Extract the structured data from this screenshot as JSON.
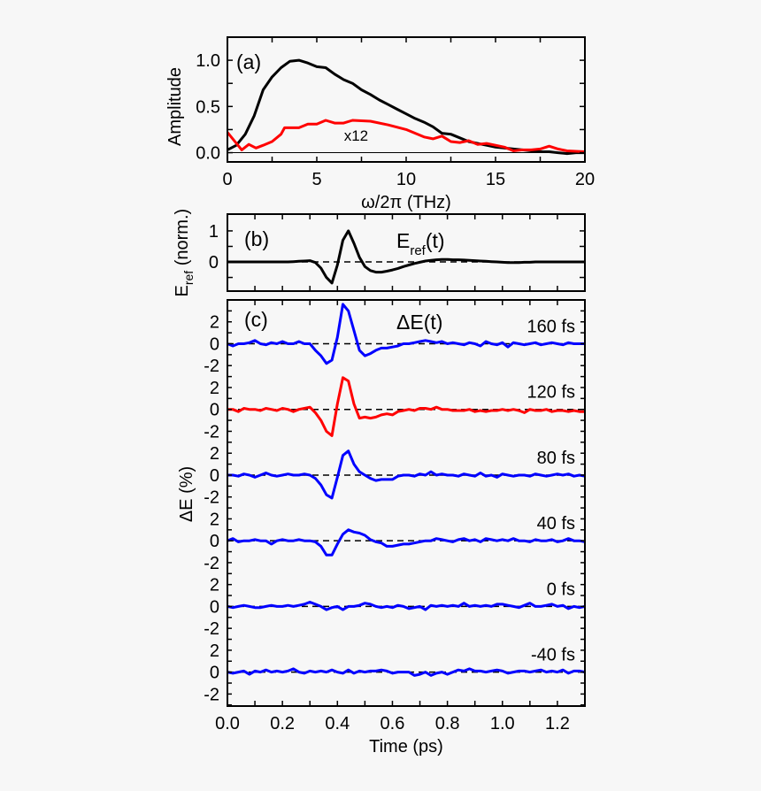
{
  "chart_data": [
    {
      "type": "line",
      "panel_label": "(a)",
      "xlabel": "ω/2π (THz)",
      "ylabel": "Amplitude",
      "xlim": [
        0,
        20
      ],
      "ylim": [
        -0.1,
        1.25
      ],
      "xticks": [
        0,
        5,
        10,
        15,
        20
      ],
      "xtick_labels": [
        "0",
        "5",
        "10",
        "15",
        "20"
      ],
      "yticks": [
        0.0,
        0.5,
        1.0
      ],
      "ytick_labels": [
        "0.0",
        "0.5",
        "1.0"
      ],
      "annotation": "x12",
      "grid": false,
      "series": [
        {
          "color": "#000000",
          "x": [
            0,
            0.5,
            1,
            1.5,
            2,
            2.5,
            3,
            3.5,
            4,
            4.5,
            5,
            5.5,
            6,
            6.5,
            7,
            7.5,
            8,
            8.5,
            9,
            9.5,
            10,
            10.5,
            11,
            11.5,
            12,
            12.5,
            13,
            13.5,
            14,
            14.5,
            15,
            15.5,
            16,
            16.5,
            17,
            17.5,
            18,
            18.5,
            19,
            19.5,
            20
          ],
          "y": [
            0.03,
            0.08,
            0.2,
            0.4,
            0.68,
            0.82,
            0.92,
            0.99,
            1.0,
            0.97,
            0.93,
            0.92,
            0.85,
            0.79,
            0.75,
            0.68,
            0.63,
            0.57,
            0.52,
            0.47,
            0.42,
            0.37,
            0.33,
            0.28,
            0.21,
            0.2,
            0.16,
            0.12,
            0.1,
            0.08,
            0.06,
            0.05,
            0.04,
            0.03,
            0.02,
            0.01,
            0.01,
            0.0,
            -0.01,
            0.0,
            0.0
          ]
        },
        {
          "color": "#ff0000",
          "x": [
            0,
            0.8,
            1.2,
            1.6,
            2,
            2.5,
            3,
            3.2,
            4,
            4.5,
            5,
            5.5,
            6,
            6.5,
            7,
            8,
            9,
            10,
            11,
            11.5,
            12,
            12.5,
            13,
            13.5,
            14,
            14.5,
            15,
            15.5,
            16,
            16.5,
            17,
            17.5,
            18,
            18.5,
            19,
            20
          ],
          "y": [
            0.22,
            0.03,
            0.09,
            0.05,
            0.08,
            0.12,
            0.2,
            0.27,
            0.27,
            0.31,
            0.31,
            0.35,
            0.32,
            0.32,
            0.35,
            0.34,
            0.3,
            0.25,
            0.17,
            0.15,
            0.18,
            0.12,
            0.11,
            0.13,
            0.09,
            0.1,
            0.08,
            0.06,
            0.02,
            0.03,
            0.03,
            0.04,
            0.07,
            0.04,
            0.02,
            0.01
          ]
        }
      ]
    },
    {
      "type": "line",
      "panel_label": "(b)",
      "title": "E_ref(t)",
      "title_main": "E",
      "title_sub": "ref",
      "title_tail": "(t)",
      "ylabel_main": "E",
      "ylabel_sub": "ref",
      "ylabel_tail": " (norm.)",
      "xlim": [
        0,
        1.3
      ],
      "ylim": [
        -0.94,
        1.54
      ],
      "yticks": [
        0,
        1
      ],
      "ytick_labels": [
        "0",
        "1"
      ],
      "zero_line": "dashed",
      "grid": false,
      "x": [
        0,
        0.02,
        0.04,
        0.06,
        0.08,
        0.1,
        0.12,
        0.14,
        0.16,
        0.18,
        0.2,
        0.22,
        0.24,
        0.26,
        0.28,
        0.3,
        0.32,
        0.34,
        0.36,
        0.38,
        0.4,
        0.42,
        0.44,
        0.46,
        0.48,
        0.5,
        0.52,
        0.54,
        0.56,
        0.58,
        0.6,
        0.62,
        0.64,
        0.66,
        0.68,
        0.7,
        0.72,
        0.74,
        0.76,
        0.78,
        0.8,
        0.82,
        0.84,
        0.86,
        0.88,
        0.9,
        0.92,
        0.94,
        0.96,
        0.98,
        1.0,
        1.02,
        1.04,
        1.06,
        1.08,
        1.1,
        1.12,
        1.14,
        1.16,
        1.18,
        1.2,
        1.22,
        1.24,
        1.26,
        1.28,
        1.3
      ],
      "series": [
        {
          "color": "#000000",
          "values": [
            0,
            0,
            0,
            0,
            0,
            0,
            0,
            0,
            0,
            0,
            0,
            0,
            0.01,
            0.02,
            0.03,
            0.04,
            -0.02,
            -0.2,
            -0.5,
            -0.68,
            -0.1,
            0.7,
            1.0,
            0.6,
            0.15,
            -0.15,
            -0.28,
            -0.33,
            -0.33,
            -0.3,
            -0.26,
            -0.21,
            -0.15,
            -0.1,
            -0.05,
            -0.01,
            0.03,
            0.05,
            0.07,
            0.08,
            0.08,
            0.07,
            0.07,
            0.06,
            0.05,
            0.04,
            0.03,
            0.02,
            0.01,
            0,
            -0.01,
            -0.02,
            -0.02,
            -0.02,
            -0.01,
            -0.01,
            0,
            0,
            0,
            0,
            0,
            0,
            0,
            0,
            0,
            0
          ]
        }
      ]
    },
    {
      "type": "line",
      "panel_label": "(c)",
      "title": "ΔE(t)",
      "xlabel": "Time (ps)",
      "ylabel": "ΔE (%)",
      "xlim": [
        0,
        1.3
      ],
      "ylim": [
        -3.1,
        34
      ],
      "xticks": [
        0,
        0.2,
        0.4,
        0.6,
        0.8,
        1.0,
        1.2
      ],
      "xtick_labels": [
        "0.0",
        "0.2",
        "0.4",
        "0.6",
        "0.8",
        "1.0",
        "1.2"
      ],
      "yticks_per_trace": [
        -2,
        0,
        2
      ],
      "ytick_labels_per_trace": [
        "-2",
        "0",
        "2"
      ],
      "zero_line": "dashed",
      "grid": false,
      "x": [
        0,
        0.02,
        0.04,
        0.06,
        0.08,
        0.1,
        0.12,
        0.14,
        0.16,
        0.18,
        0.2,
        0.22,
        0.24,
        0.26,
        0.28,
        0.3,
        0.32,
        0.34,
        0.36,
        0.38,
        0.4,
        0.42,
        0.44,
        0.46,
        0.48,
        0.5,
        0.52,
        0.54,
        0.56,
        0.58,
        0.6,
        0.62,
        0.64,
        0.66,
        0.68,
        0.7,
        0.72,
        0.74,
        0.76,
        0.78,
        0.8,
        0.82,
        0.84,
        0.86,
        0.88,
        0.9,
        0.92,
        0.94,
        0.96,
        0.98,
        1.0,
        1.02,
        1.04,
        1.06,
        1.08,
        1.1,
        1.12,
        1.14,
        1.16,
        1.18,
        1.2,
        1.22,
        1.24,
        1.26,
        1.28,
        1.3
      ],
      "series": [
        {
          "name": "160 fs",
          "offset": 30,
          "color": "#0000ff",
          "values": [
            0,
            -0.2,
            0,
            0,
            0.1,
            0.3,
            0,
            -0.1,
            0.1,
            0,
            0.2,
            0,
            0,
            0.2,
            0,
            0,
            -0.6,
            -1.1,
            -1.8,
            -1.5,
            0.6,
            3.6,
            3.0,
            1.2,
            -0.6,
            -1.1,
            -0.9,
            -0.6,
            -0.4,
            -0.4,
            -0.3,
            -0.2,
            0,
            0,
            0.1,
            0.2,
            0.3,
            0.2,
            0.1,
            0.2,
            0,
            0.1,
            0,
            -0.1,
            0.1,
            0,
            -0.2,
            0.2,
            0,
            -0.1,
            0.1,
            -0.3,
            0.1,
            0,
            -0.1,
            0,
            0.1,
            -0.1,
            0,
            0.1,
            0,
            -0.1,
            0.1,
            0,
            0,
            0
          ]
        },
        {
          "name": "120 fs",
          "offset": 24,
          "color": "#ff0000",
          "values": [
            0,
            0,
            -0.2,
            0.1,
            0,
            0,
            -0.1,
            0.1,
            0,
            -0.1,
            0.1,
            0,
            -0.2,
            0,
            0.1,
            0.2,
            -0.3,
            -1.0,
            -2.0,
            -2.4,
            0.5,
            2.9,
            2.6,
            0.5,
            -0.8,
            -0.7,
            -0.8,
            -0.7,
            -0.5,
            -0.4,
            -0.5,
            -0.2,
            -0.1,
            0,
            -0.1,
            0.1,
            0.1,
            0,
            0.2,
            0,
            0,
            -0.1,
            -0.1,
            -0.1,
            0,
            -0.2,
            -0.1,
            -0.2,
            -0.1,
            -0.1,
            0,
            -0.1,
            0,
            -0.1,
            -0.3,
            0,
            -0.1,
            -0.1,
            0,
            -0.2,
            -0.1,
            -0.1,
            -0.2,
            -0.1,
            -0.2,
            -0.2
          ]
        },
        {
          "name": "80 fs",
          "offset": 18,
          "color": "#0000ff",
          "values": [
            0,
            0,
            -0.1,
            0.1,
            0,
            -0.2,
            0,
            0.2,
            0,
            -0.1,
            0,
            0.1,
            0,
            0,
            0.1,
            0,
            -0.3,
            -0.9,
            -1.8,
            -2.1,
            -0.2,
            1.8,
            2.2,
            1.0,
            0.3,
            0,
            -0.3,
            -0.5,
            -0.4,
            -0.4,
            -0.4,
            -0.1,
            0,
            0,
            -0.1,
            0.1,
            0,
            0.3,
            0,
            0.1,
            0,
            0,
            -0.1,
            0.1,
            0,
            -0.1,
            0.2,
            -0.1,
            0,
            -0.2,
            0.1,
            0,
            -0.1,
            0,
            0,
            -0.1,
            0.1,
            0,
            -0.1,
            0,
            0.1,
            0,
            0.1,
            -0.1,
            0,
            -0.1
          ]
        },
        {
          "name": "40 fs",
          "offset": 12,
          "color": "#0000ff",
          "values": [
            0,
            0.2,
            -0.1,
            0,
            0,
            0.1,
            0,
            0,
            -0.3,
            0,
            0.1,
            0,
            0,
            0.1,
            0,
            0,
            -0.1,
            -0.5,
            -1.3,
            -1.3,
            -0.3,
            0.6,
            1.0,
            0.8,
            0.7,
            0.5,
            0.1,
            -0.1,
            -0.2,
            -0.5,
            -0.5,
            -0.4,
            -0.3,
            -0.3,
            -0.2,
            -0.1,
            0,
            0,
            0.2,
            0.1,
            0,
            -0.1,
            0.1,
            0.2,
            0,
            0.1,
            -0.1,
            0.2,
            0.1,
            0,
            0.1,
            0,
            0.2,
            0,
            0,
            -0.1,
            0.1,
            0,
            0,
            0.1,
            -0.1,
            0,
            0.2,
            0,
            0,
            -0.1
          ]
        },
        {
          "name": "0 fs",
          "offset": 6,
          "color": "#0000ff",
          "values": [
            0,
            -0.1,
            0,
            0.1,
            0,
            -0.1,
            -0.1,
            0,
            0.1,
            0,
            0,
            0.1,
            0,
            0.1,
            0.2,
            0.4,
            0.2,
            0,
            -0.3,
            -0.1,
            0,
            -0.3,
            0,
            0,
            0.1,
            0.3,
            0.2,
            0,
            -0.1,
            0,
            -0.1,
            0.1,
            0,
            -0.2,
            -0.1,
            0,
            -0.3,
            0.1,
            0,
            0.1,
            0,
            0.1,
            0,
            0.3,
            0,
            0.1,
            0,
            0.1,
            0,
            0.2,
            0.2,
            0.1,
            0,
            -0.1,
            0.1,
            0.3,
            0,
            0,
            0.1,
            0.2,
            0,
            0.1,
            -0.2,
            0,
            -0.1,
            0
          ]
        },
        {
          "name": "-40 fs",
          "offset": 0,
          "color": "#0000ff",
          "values": [
            0,
            -0.1,
            0,
            0.1,
            -0.2,
            0.1,
            0,
            0.2,
            0,
            0.1,
            0,
            0.1,
            0.3,
            0,
            -0.1,
            0.1,
            0,
            0.1,
            0,
            0.2,
            0,
            -0.1,
            0.2,
            -0.1,
            0.1,
            0,
            0.1,
            0.1,
            0.2,
            0.1,
            -0.1,
            0,
            0,
            0,
            -0.3,
            -0.2,
            0,
            -0.3,
            -0.1,
            0,
            -0.2,
            0,
            0.2,
            0.1,
            0.3,
            0.1,
            0.1,
            0,
            0.1,
            0.2,
            0.1,
            -0.1,
            0,
            0.1,
            0.1,
            0,
            0.1,
            0.2,
            0,
            0.1,
            0,
            0.2,
            -0.1,
            0.1,
            0.1,
            0
          ]
        }
      ]
    }
  ]
}
